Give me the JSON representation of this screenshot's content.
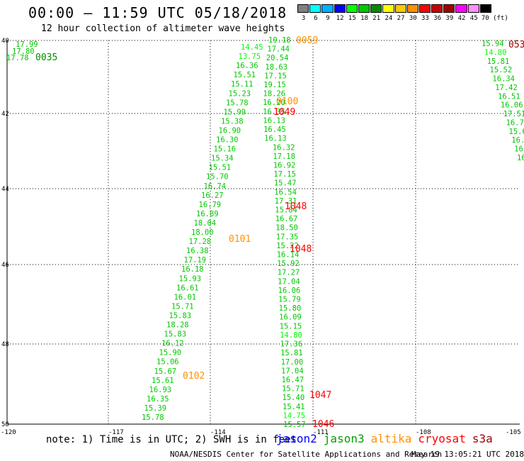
{
  "header": {
    "title": "00:00 – 11:59 UTC 05/18/2018",
    "subtitle": "12 hour collection of altimeter wave heights"
  },
  "colorbar": {
    "labels": [
      "3",
      "6",
      "9",
      "12",
      "15",
      "18",
      "21",
      "24",
      "27",
      "30",
      "33",
      "36",
      "39",
      "42",
      "45",
      "70 (ft)"
    ],
    "colors": [
      "#808080",
      "#00ffff",
      "#00b0ff",
      "#0000ff",
      "#00ff00",
      "#00c800",
      "#008c00",
      "#ffff00",
      "#ffc800",
      "#ff9000",
      "#ff0000",
      "#c80000",
      "#a00000",
      "#ff00ff",
      "#ff90ff",
      "#000000"
    ]
  },
  "map": {
    "lon_ticks": [
      "-120",
      "-117",
      "-114",
      "-111",
      "-108",
      "-105"
    ],
    "lat_ticks": [
      "40",
      "42",
      "44",
      "46",
      "48",
      "50"
    ]
  },
  "tracks": [
    {
      "name": "track-far-left",
      "values": [
        "17.99",
        "17.80",
        "17.78"
      ],
      "colors": [
        "#00c800",
        "#00c800",
        "#00c800"
      ],
      "time": "0035",
      "time_color": "#008c00"
    },
    {
      "name": "track-left",
      "values": [
        "14.45",
        "13.75",
        "16.36",
        "15.51",
        "15.11",
        "15.23",
        "15.78",
        "15.99",
        "15.38",
        "16.90",
        "16.30",
        "15.16",
        "15.34",
        "15.51",
        "15.70",
        "16.74",
        "16.27",
        "16.79",
        "16.89",
        "18.04",
        "18.00",
        "17.28",
        "16.38",
        "17.19",
        "16.18",
        "15.93",
        "16.61",
        "16.01",
        "15.71",
        "15.83",
        "18.28",
        "15.83",
        "16.12",
        "15.90",
        "15.06",
        "15.67",
        "15.61",
        "16.93",
        "16.35",
        "15.39",
        "15.78"
      ],
      "colors": [
        "#00ff00",
        "#00ff00",
        "#00c800",
        "#00c800",
        "#00c800",
        "#00c800",
        "#00c800",
        "#00c800",
        "#00c800",
        "#00c800",
        "#00c800",
        "#00c800",
        "#00c800",
        "#00c800",
        "#00c800",
        "#00c800",
        "#00c800",
        "#00c800",
        "#00c800",
        "#00c800",
        "#00c800",
        "#00c800",
        "#00c800",
        "#00c800",
        "#00c800",
        "#00c800",
        "#00c800",
        "#00c800",
        "#00c800",
        "#00c800",
        "#00c800",
        "#00c800",
        "#00c800",
        "#00c800",
        "#00c800",
        "#00c800",
        "#00c800",
        "#00c800",
        "#00c800",
        "#00c800",
        "#00c800"
      ],
      "times": [
        {
          "text": "0059",
          "color": "#ff9000"
        },
        {
          "text": "0100",
          "color": "#ff9000"
        },
        {
          "text": "0101",
          "color": "#ff9000"
        },
        {
          "text": "0102",
          "color": "#ff9000"
        }
      ]
    },
    {
      "name": "track-center",
      "values": [
        "19.18",
        "17.44",
        "20.54",
        "18.63",
        "17.15",
        "19.15",
        "18.26",
        "16.20",
        "16.35",
        "16.13",
        "16.45",
        "16.13",
        "16.32",
        "17.18",
        "16.92",
        "17.15",
        "15.47",
        "16.54",
        "17.31",
        "15.84",
        "16.67",
        "18.50",
        "17.35",
        "15.22",
        "16.14",
        "15.92",
        "17.27",
        "17.04",
        "16.06",
        "15.79",
        "15.80",
        "16.09",
        "15.15",
        "14.80",
        "17.36",
        "15.81",
        "17.00",
        "17.04",
        "16.47",
        "15.71",
        "15.40",
        "15.41",
        "14.75",
        "15.57"
      ],
      "colors": [
        "#00c800",
        "#00c800",
        "#00c800",
        "#00c800",
        "#00c800",
        "#00c800",
        "#00c800",
        "#00c800",
        "#00c800",
        "#00c800",
        "#00c800",
        "#00c800",
        "#00c800",
        "#00c800",
        "#00c800",
        "#00c800",
        "#00c800",
        "#00c800",
        "#00c800",
        "#00c800",
        "#00c800",
        "#00c800",
        "#00c800",
        "#00c800",
        "#00c800",
        "#00c800",
        "#00c800",
        "#00c800",
        "#00c800",
        "#00c800",
        "#00c800",
        "#00c800",
        "#00c800",
        "#00ff00",
        "#00c800",
        "#00c800",
        "#00c800",
        "#00c800",
        "#00c800",
        "#00c800",
        "#00c800",
        "#00c800",
        "#00ff00",
        "#00c800"
      ],
      "times": [
        {
          "text": "1049",
          "color": "#ff0000"
        },
        {
          "text": "1048",
          "color": "#ff0000"
        },
        {
          "text": "1048",
          "color": "#ff0000"
        },
        {
          "text": "1047",
          "color": "#ff0000"
        },
        {
          "text": "1046",
          "color": "#ff0000"
        }
      ]
    },
    {
      "name": "track-right",
      "values": [
        "15.94",
        "14.80",
        "15.81",
        "15.52",
        "16.34",
        "17.42",
        "16.51",
        "16.06",
        "17.51",
        "16.7",
        "15.6",
        "16.9",
        "16",
        "16"
      ],
      "colors": [
        "#00c800",
        "#00ff00",
        "#00c800",
        "#00c800",
        "#00c800",
        "#00c800",
        "#00c800",
        "#00c800",
        "#00c800",
        "#00c800",
        "#00c800",
        "#00c800",
        "#00c800",
        "#00c800"
      ],
      "time": "053",
      "time_color": "#a00000"
    }
  ],
  "note": "note: 1) Time is in UTC; 2) SWH is in feet",
  "satellites": [
    {
      "name": "jason2",
      "color": "#0000ff"
    },
    {
      "name": "jason3",
      "color": "#00a000"
    },
    {
      "name": "altika",
      "color": "#ff9000"
    },
    {
      "name": "cryosat",
      "color": "#ff0000"
    },
    {
      "name": "s3a",
      "color": "#a00000"
    }
  ],
  "footer": {
    "left": "NOAA/NESDIS Center for Satellite Applications and Research",
    "right": "May 19 13:05:21 UTC 2018"
  }
}
